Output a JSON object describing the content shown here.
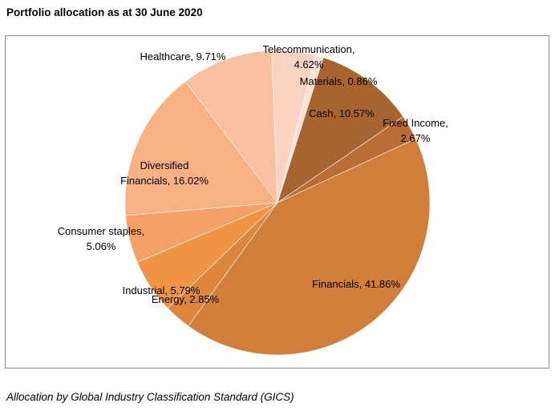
{
  "page": {
    "title": "Portfolio allocation as at 30 June 2020",
    "caption": "Allocation by Global Industry Classification Standard (GICS)"
  },
  "chart_data": {
    "type": "pie",
    "title": "",
    "slices": [
      {
        "label": "Cash",
        "value": 10.57,
        "display": [
          "Cash, 10.57%"
        ],
        "color": "#a8642f"
      },
      {
        "label": "Fixed Income",
        "value": 2.67,
        "display": [
          "Fixed Income,",
          "2.67%"
        ],
        "color": "#b96e35"
      },
      {
        "label": "Financials",
        "value": 41.86,
        "display": [
          "Financials, 41.86%"
        ],
        "color": "#d07e3a"
      },
      {
        "label": "Energy",
        "value": 2.85,
        "display": [
          "Energy, 2.85%"
        ],
        "color": "#de863f"
      },
      {
        "label": "Industrial",
        "value": 5.79,
        "display": [
          "Industrial, 5.79%"
        ],
        "color": "#ef9444"
      },
      {
        "label": "Consumer staples",
        "value": 5.06,
        "display": [
          "Consumer staples,",
          "5.06%"
        ],
        "color": "#f5a066"
      },
      {
        "label": "Diversified Financials",
        "value": 16.02,
        "display": [
          "Diversified",
          "Financials, 16.02%"
        ],
        "color": "#f7b183"
      },
      {
        "label": "Healthcare",
        "value": 9.71,
        "display": [
          "Healthcare, 9.71%"
        ],
        "color": "#f9c0a0"
      },
      {
        "label": "Telecommunication",
        "value": 4.62,
        "display": [
          "Telecommunication,",
          "4.62%"
        ],
        "color": "#fbd3c0"
      },
      {
        "label": "Materials",
        "value": 0.86,
        "display": [
          "Materials, 0.86%"
        ],
        "color": "#fde1d4"
      }
    ],
    "start_slice_at": "Cash",
    "direction": "clockwise",
    "legend": "none"
  }
}
